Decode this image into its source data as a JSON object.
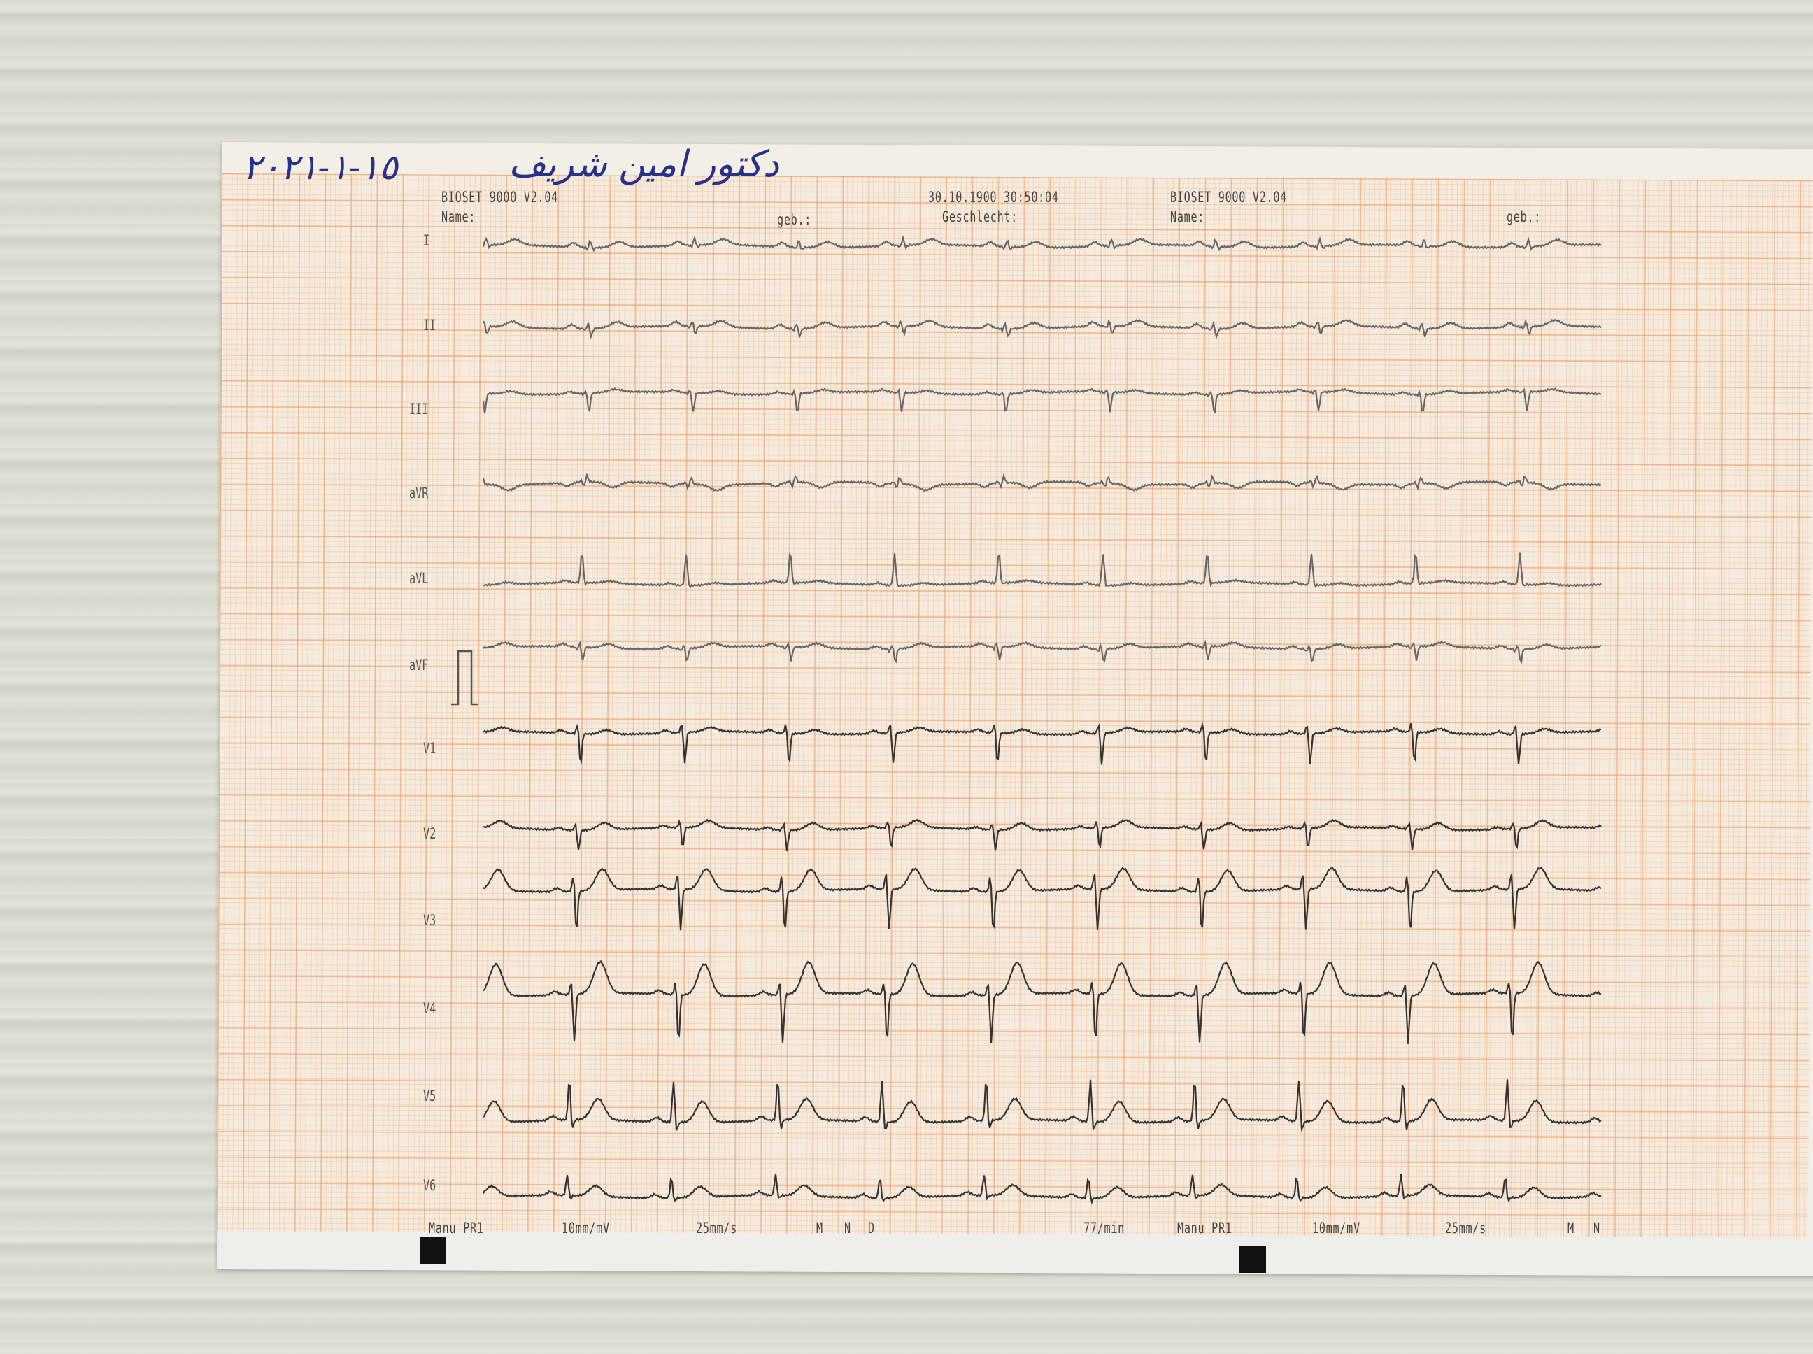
{
  "handwriting": {
    "date": "١٥-١-٢٠٢١",
    "name": "دكتور امين شريف"
  },
  "header": {
    "left": {
      "device": "BIOSET 9000 V2.04",
      "name_label": "Name:",
      "birth_label": "geb.:"
    },
    "middle": {
      "datetime": "30.10.1900 30:50:04",
      "sex_label": "Geschlecht:"
    },
    "right": {
      "device": "BIOSET 9000 V2.04",
      "name_label": "Name:",
      "birth_label": "geb.:"
    }
  },
  "leads": [
    "I",
    "II",
    "III",
    "aVR",
    "aVL",
    "aVF",
    "V1",
    "V2",
    "V3",
    "V4",
    "V5",
    "V6"
  ],
  "footer": {
    "left": {
      "mode": "Manu PR1",
      "gain": "10mm/mV",
      "speed": "25mm/s",
      "m": "M",
      "n": "N",
      "d": "D"
    },
    "rate": "77/min",
    "right": {
      "mode": "Manu PR1",
      "gain": "10mm/mV",
      "speed": "25mm/s",
      "m": "M",
      "n": "N"
    }
  },
  "colors": {
    "grid": "#e8965a",
    "trace": "#555555",
    "ink": "#27318a"
  }
}
